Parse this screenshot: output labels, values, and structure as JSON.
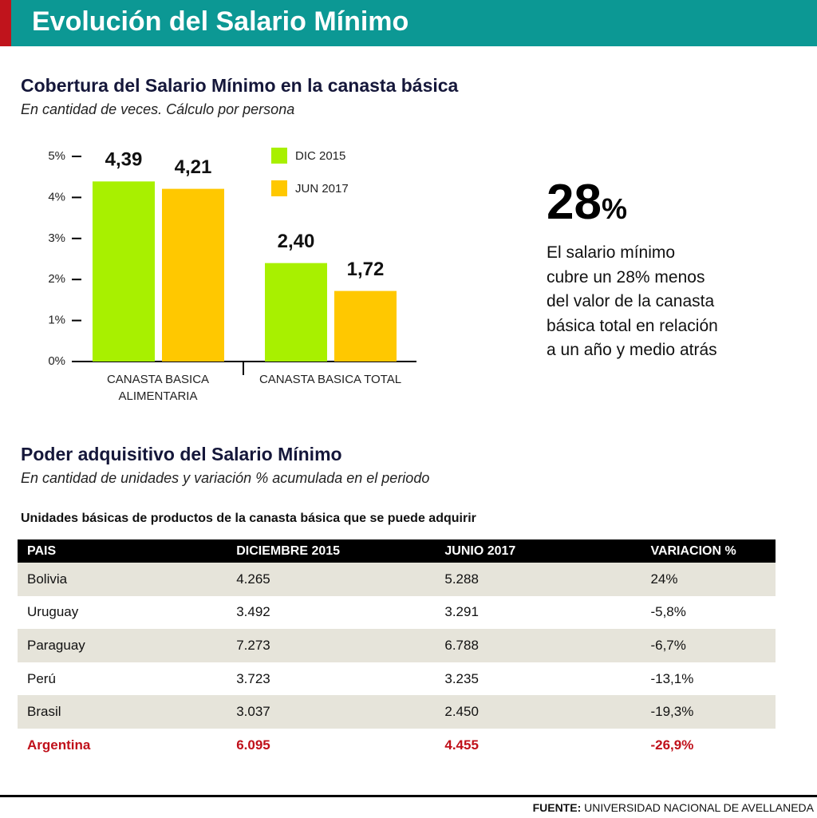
{
  "header": {
    "title": "Evolución del Salario Mínimo"
  },
  "chart_data": {
    "type": "bar",
    "title": "Cobertura del Salario Mínimo en la canasta básica",
    "subtitle": "En cantidad de veces. Cálculo por persona",
    "categories": [
      "CANASTA BASICA ALIMENTARIA",
      "CANASTA BASICA TOTAL"
    ],
    "series": [
      {
        "name": "DIC 2015",
        "color": "#a8f000",
        "values": [
          4.39,
          2.4
        ],
        "value_labels": [
          "4,39",
          "2,40"
        ]
      },
      {
        "name": "JUN 2017",
        "color": "#ffc800",
        "values": [
          4.21,
          1.72
        ],
        "value_labels": [
          "4,21",
          "1,72"
        ]
      }
    ],
    "ylim": [
      0,
      5
    ],
    "yticks": [
      {
        "value": 0,
        "label": "0%"
      },
      {
        "value": 1,
        "label": "1%"
      },
      {
        "value": 2,
        "label": "2%"
      },
      {
        "value": 3,
        "label": "3%"
      },
      {
        "value": 4,
        "label": "4%"
      },
      {
        "value": 5,
        "label": "5%"
      }
    ],
    "legend": "top-right"
  },
  "callout": {
    "value": "28",
    "unit": "%",
    "lines": [
      "El salario mínimo",
      "cubre un 28% menos",
      "del valor de la canasta",
      "básica total en relación",
      "a un año y medio atrás"
    ]
  },
  "section": {
    "title": "Poder adquisitivo del Salario Mínimo",
    "subtitle": "En cantidad de unidades y variación % acumulada en el periodo"
  },
  "table": {
    "caption": "Unidades básicas de productos de la canasta básica que se puede adquirir",
    "columns": [
      "PAIS",
      "DICIEMBRE 2015",
      "JUNIO 2017",
      "VARIACION %"
    ],
    "rows": [
      [
        "Bolivia",
        "4.265",
        "5.288",
        "24%"
      ],
      [
        "Uruguay",
        "3.492",
        "3.291",
        "-5,8%"
      ],
      [
        "Paraguay",
        "7.273",
        "6.788",
        "-6,7%"
      ],
      [
        "Perú",
        "3.723",
        "3.235",
        "-13,1%"
      ],
      [
        "Brasil",
        "3.037",
        "2.450",
        "-19,3%"
      ],
      [
        "Argentina",
        "6.095",
        "4.455",
        "-26,9%"
      ]
    ]
  },
  "footer": {
    "label": "FUENTE:",
    "text": "UNIVERSIDAD NACIONAL DE AVELLANEDA"
  }
}
